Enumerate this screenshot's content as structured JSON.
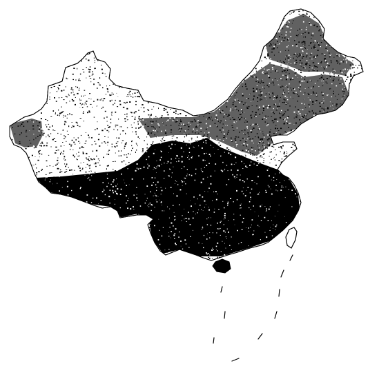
{
  "map": {
    "style": "black-and-white stipple density map",
    "ink_color": "#000000",
    "background_color": "#ffffff",
    "regions": [
      {
        "id": "western-desert",
        "density": "sparse"
      },
      {
        "id": "tibetan-plateau",
        "density": "sparse"
      },
      {
        "id": "northeast-plain",
        "density": "dense"
      },
      {
        "id": "north-china-plain",
        "density": "dense"
      },
      {
        "id": "southern-region",
        "density": "very-dense"
      },
      {
        "id": "southwest-belt",
        "density": "very-dense"
      }
    ],
    "islands": [
      "taiwan-island",
      "hainan-island"
    ],
    "features": [
      "coastline",
      "national-border",
      "dashed-maritime-line"
    ]
  }
}
